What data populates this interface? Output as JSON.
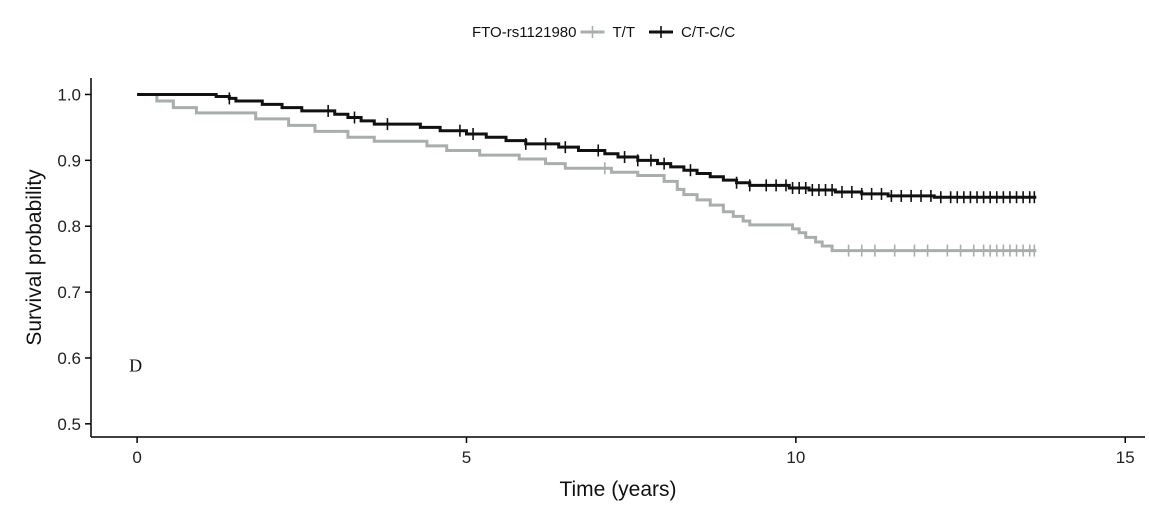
{
  "chart_data": {
    "type": "line",
    "xlabel": "Time (years)",
    "ylabel": "Survival probability",
    "xlim": [
      -0.7,
      15.3
    ],
    "ylim": [
      0.48,
      1.025
    ],
    "x_ticks": [
      0,
      5,
      10,
      15
    ],
    "x_tick_labels": [
      "0",
      "5",
      "10",
      "15"
    ],
    "y_ticks": [
      0.5,
      0.6,
      0.7,
      0.8,
      0.9,
      1.0
    ],
    "y_tick_labels": [
      "0.5",
      "0.6",
      "0.7",
      "0.8",
      "0.9",
      "1.0"
    ],
    "grid": false,
    "legend": {
      "title": "FTO-rs1121980",
      "position": "top-center",
      "entries": [
        "T/T",
        "C/T-C/C"
      ]
    },
    "annotations": [
      {
        "text": "D",
        "x": 0,
        "y": 0.59
      }
    ],
    "series": [
      {
        "name": "T/T",
        "color": "#a9aeac",
        "step_points": [
          [
            0,
            1.0
          ],
          [
            0.3,
            0.99
          ],
          [
            0.55,
            0.98
          ],
          [
            0.9,
            0.972
          ],
          [
            1.8,
            0.963
          ],
          [
            2.3,
            0.953
          ],
          [
            2.7,
            0.944
          ],
          [
            3.2,
            0.935
          ],
          [
            3.6,
            0.929
          ],
          [
            4.4,
            0.922
          ],
          [
            4.7,
            0.915
          ],
          [
            5.2,
            0.908
          ],
          [
            5.8,
            0.902
          ],
          [
            6.2,
            0.895
          ],
          [
            6.5,
            0.888
          ],
          [
            7.2,
            0.882
          ],
          [
            7.6,
            0.877
          ],
          [
            8.0,
            0.868
          ],
          [
            8.2,
            0.856
          ],
          [
            8.3,
            0.848
          ],
          [
            8.5,
            0.84
          ],
          [
            8.7,
            0.832
          ],
          [
            8.9,
            0.822
          ],
          [
            9.05,
            0.815
          ],
          [
            9.2,
            0.808
          ],
          [
            9.3,
            0.802
          ],
          [
            9.95,
            0.796
          ],
          [
            10.05,
            0.79
          ],
          [
            10.15,
            0.783
          ],
          [
            10.3,
            0.776
          ],
          [
            10.4,
            0.77
          ],
          [
            10.55,
            0.763
          ],
          [
            13.65,
            0.763
          ]
        ],
        "censor_times": [
          7.1,
          10.8,
          11.0,
          11.2,
          11.5,
          11.8,
          12.0,
          12.3,
          12.5,
          12.7,
          12.85,
          12.95,
          13.05,
          13.15,
          13.25,
          13.35,
          13.45,
          13.55,
          13.62
        ]
      },
      {
        "name": "C/T-C/C",
        "color": "#111111",
        "step_points": [
          [
            0,
            1.0
          ],
          [
            1.2,
            0.997
          ],
          [
            1.4,
            0.994
          ],
          [
            1.5,
            0.99
          ],
          [
            1.9,
            0.985
          ],
          [
            2.2,
            0.98
          ],
          [
            2.5,
            0.975
          ],
          [
            3.0,
            0.97
          ],
          [
            3.2,
            0.965
          ],
          [
            3.4,
            0.96
          ],
          [
            3.6,
            0.955
          ],
          [
            4.3,
            0.95
          ],
          [
            4.6,
            0.945
          ],
          [
            5.0,
            0.94
          ],
          [
            5.3,
            0.935
          ],
          [
            5.6,
            0.93
          ],
          [
            5.9,
            0.925
          ],
          [
            6.4,
            0.92
          ],
          [
            6.7,
            0.915
          ],
          [
            7.1,
            0.91
          ],
          [
            7.3,
            0.905
          ],
          [
            7.6,
            0.9
          ],
          [
            7.9,
            0.895
          ],
          [
            8.1,
            0.89
          ],
          [
            8.3,
            0.885
          ],
          [
            8.5,
            0.88
          ],
          [
            8.7,
            0.875
          ],
          [
            8.9,
            0.87
          ],
          [
            9.1,
            0.866
          ],
          [
            9.3,
            0.862
          ],
          [
            9.9,
            0.858
          ],
          [
            10.2,
            0.855
          ],
          [
            10.6,
            0.852
          ],
          [
            11.0,
            0.849
          ],
          [
            11.4,
            0.846
          ],
          [
            12.1,
            0.844
          ],
          [
            13.65,
            0.844
          ]
        ],
        "censor_times": [
          1.4,
          2.9,
          3.3,
          3.8,
          4.9,
          5.1,
          5.9,
          6.2,
          6.5,
          7.0,
          7.4,
          7.6,
          7.8,
          8.0,
          8.4,
          9.1,
          9.3,
          9.55,
          9.7,
          9.85,
          9.95,
          10.05,
          10.15,
          10.25,
          10.35,
          10.45,
          10.55,
          10.7,
          10.85,
          11.0,
          11.15,
          11.3,
          11.45,
          11.6,
          11.75,
          11.9,
          12.05,
          12.2,
          12.35,
          12.45,
          12.55,
          12.65,
          12.75,
          12.85,
          12.95,
          13.05,
          13.15,
          13.25,
          13.35,
          13.45,
          13.55,
          13.62
        ]
      }
    ]
  }
}
